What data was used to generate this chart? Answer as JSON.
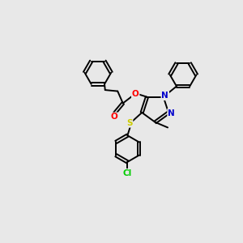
{
  "bg_color": "#e8e8e8",
  "bond_color": "#000000",
  "atom_colors": {
    "O": "#ff0000",
    "N": "#0000cc",
    "S": "#cccc00",
    "Cl": "#00cc00",
    "C": "#000000"
  },
  "figsize": [
    3.0,
    3.0
  ],
  "dpi": 100,
  "bond_lw": 1.4,
  "font_size": 7.5,
  "ring_r": 0.55,
  "pyraz_r": 0.58
}
